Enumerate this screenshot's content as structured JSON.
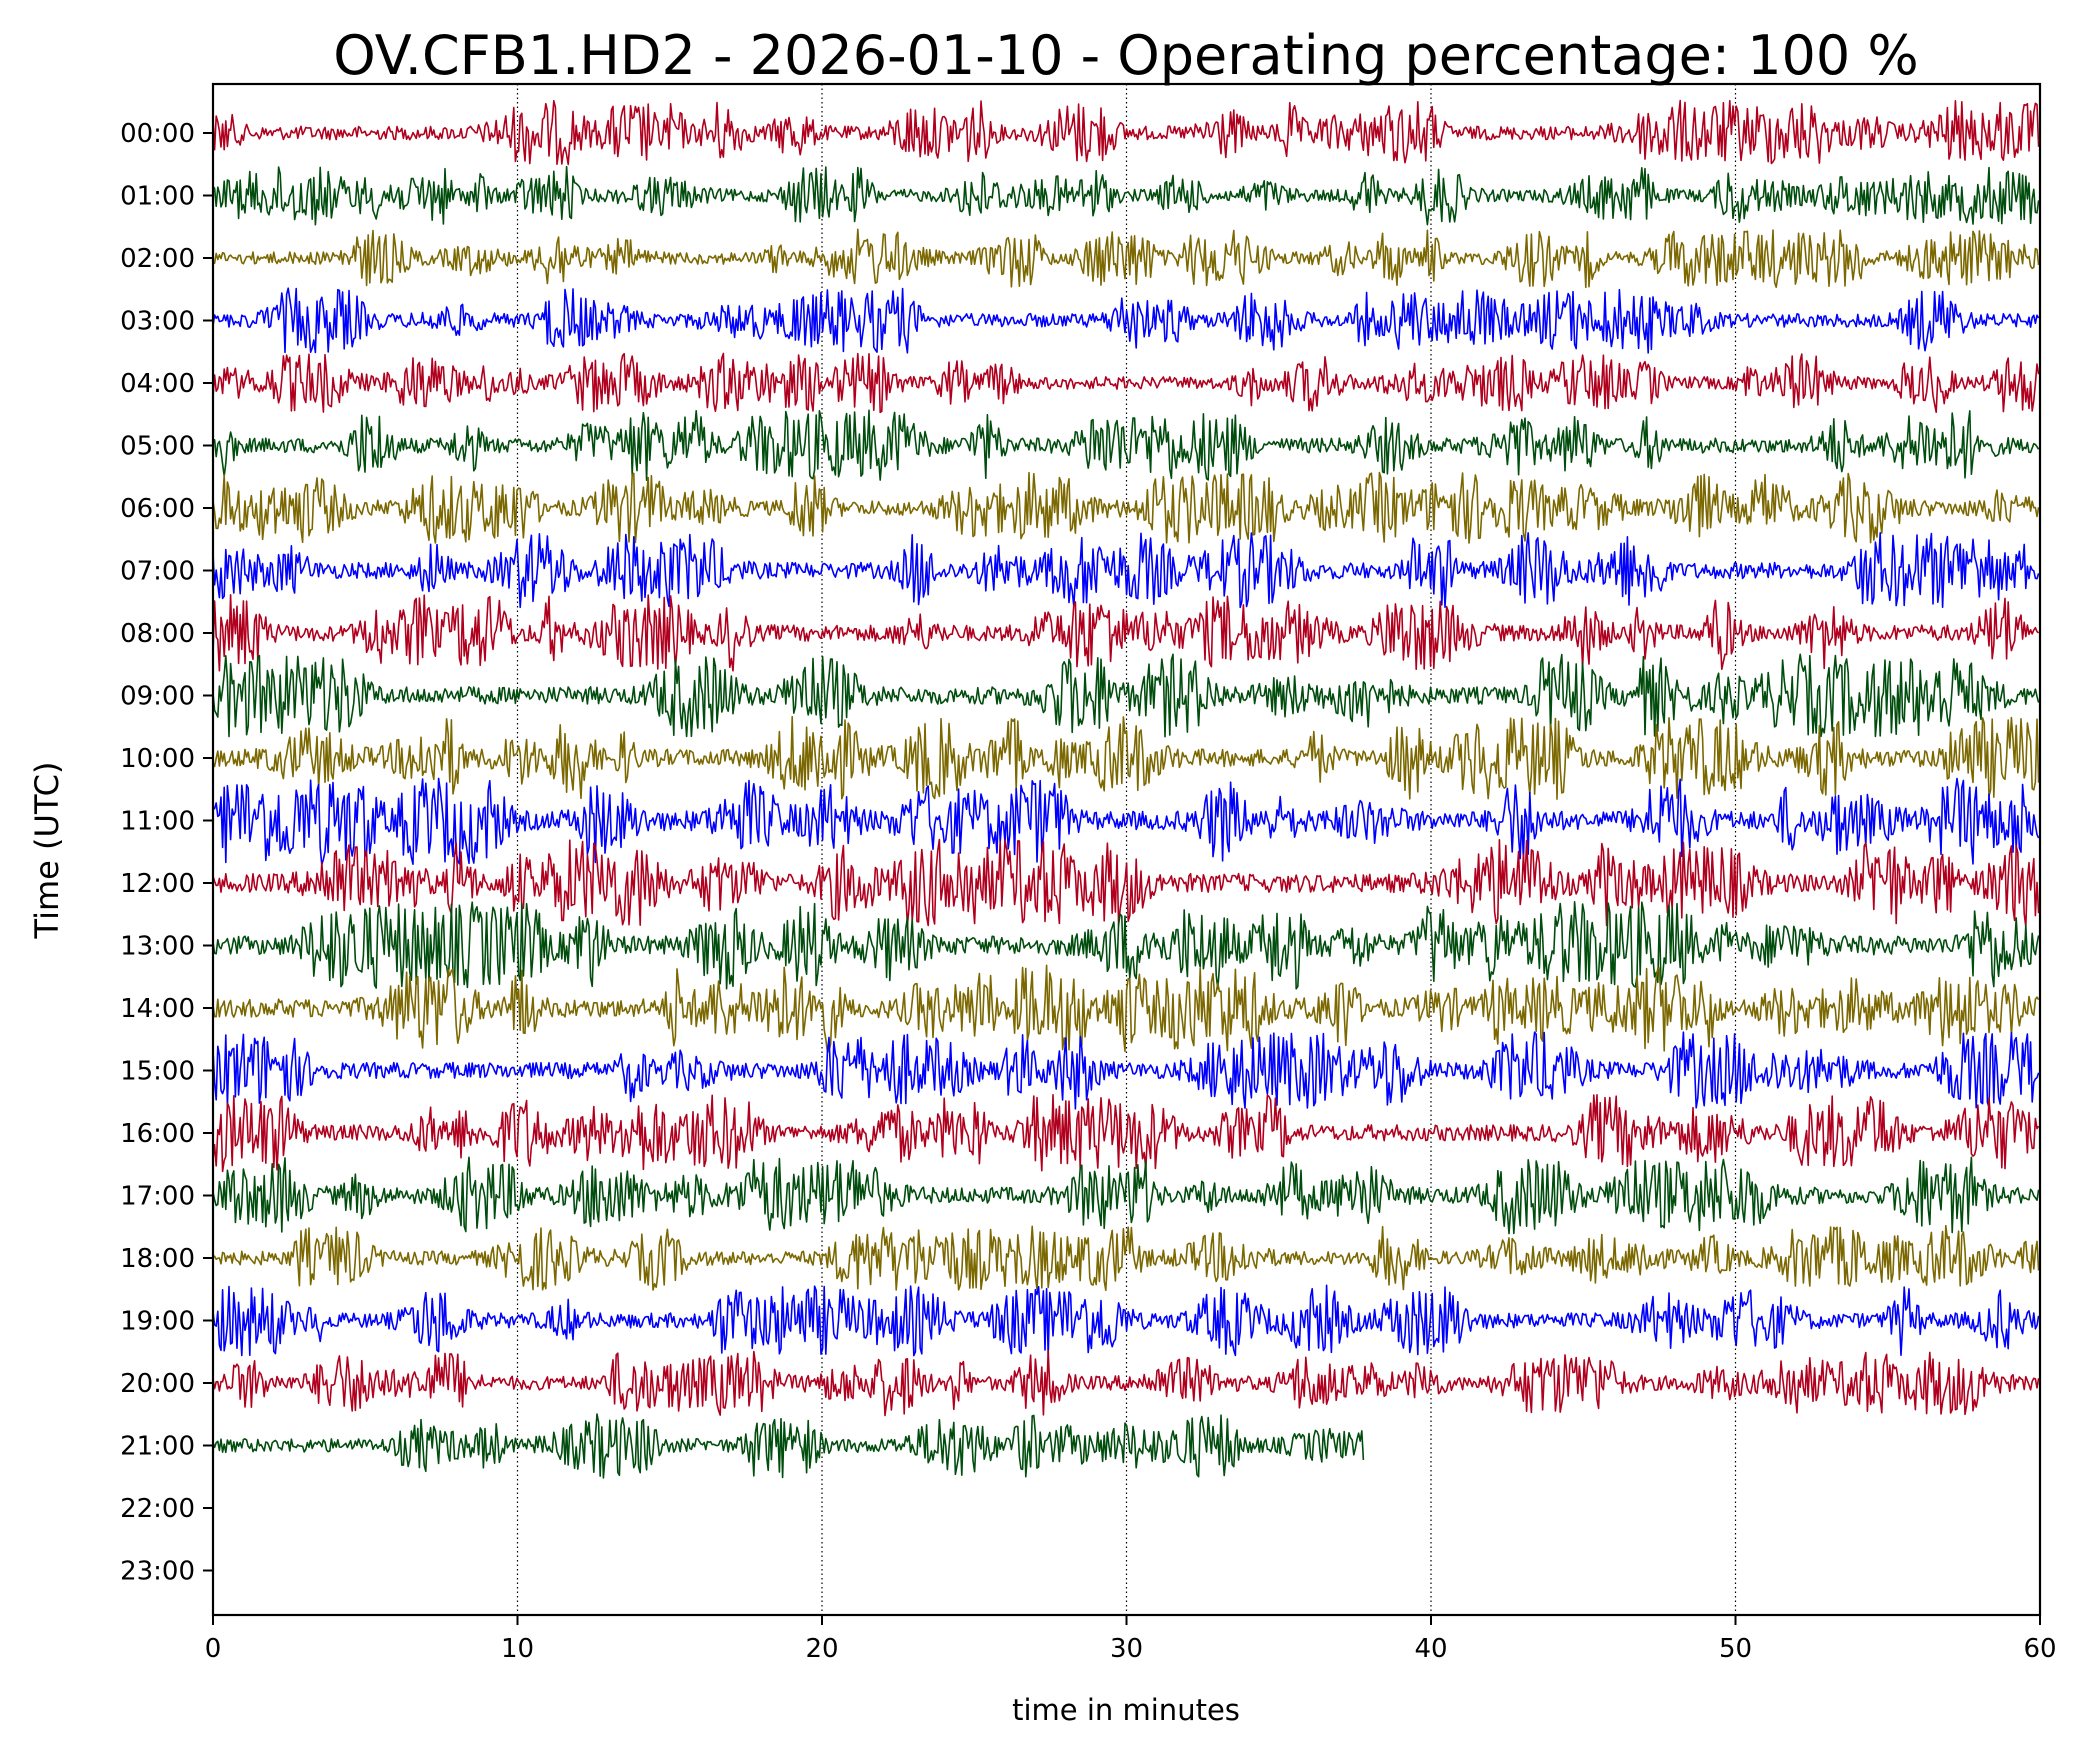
{
  "chart_data": {
    "type": "line",
    "title": "OV.CFB1.HD2 - 2026-01-10 - Operating percentage: 100 %",
    "xlabel": "time in minutes",
    "ylabel": "Time (UTC)",
    "xlim": [
      0,
      60
    ],
    "x_ticks": [
      "0",
      "10",
      "20",
      "30",
      "40",
      "50",
      "60"
    ],
    "x_tick_values": [
      0,
      10,
      20,
      30,
      40,
      50,
      60
    ],
    "grid": "vertical dotted at x ticks",
    "legend": "none",
    "row_colors": [
      "#b0001e",
      "#004d0d",
      "#7c6800",
      "#0000ff"
    ],
    "series": [
      {
        "name": "00:00",
        "color": "#b0001e",
        "end_minute": 60,
        "amplitude": 0.55
      },
      {
        "name": "01:00",
        "color": "#004d0d",
        "end_minute": 60,
        "amplitude": 0.5
      },
      {
        "name": "02:00",
        "color": "#7c6800",
        "end_minute": 60,
        "amplitude": 0.5
      },
      {
        "name": "03:00",
        "color": "#0000ff",
        "end_minute": 60,
        "amplitude": 0.55
      },
      {
        "name": "04:00",
        "color": "#b0001e",
        "end_minute": 60,
        "amplitude": 0.5
      },
      {
        "name": "05:00",
        "color": "#004d0d",
        "end_minute": 60,
        "amplitude": 0.6
      },
      {
        "name": "06:00",
        "color": "#7c6800",
        "end_minute": 60,
        "amplitude": 0.6
      },
      {
        "name": "07:00",
        "color": "#0000ff",
        "end_minute": 60,
        "amplitude": 0.65
      },
      {
        "name": "08:00",
        "color": "#b0001e",
        "end_minute": 60,
        "amplitude": 0.65
      },
      {
        "name": "09:00",
        "color": "#004d0d",
        "end_minute": 60,
        "amplitude": 0.7
      },
      {
        "name": "10:00",
        "color": "#7c6800",
        "end_minute": 60,
        "amplitude": 0.7
      },
      {
        "name": "11:00",
        "color": "#0000ff",
        "end_minute": 60,
        "amplitude": 0.75
      },
      {
        "name": "12:00",
        "color": "#b0001e",
        "end_minute": 60,
        "amplitude": 0.75
      },
      {
        "name": "13:00",
        "color": "#004d0d",
        "end_minute": 60,
        "amplitude": 0.75
      },
      {
        "name": "14:00",
        "color": "#7c6800",
        "end_minute": 60,
        "amplitude": 0.75
      },
      {
        "name": "15:00",
        "color": "#0000ff",
        "end_minute": 60,
        "amplitude": 0.65
      },
      {
        "name": "16:00",
        "color": "#b0001e",
        "end_minute": 60,
        "amplitude": 0.65
      },
      {
        "name": "17:00",
        "color": "#004d0d",
        "end_minute": 60,
        "amplitude": 0.65
      },
      {
        "name": "18:00",
        "color": "#7c6800",
        "end_minute": 60,
        "amplitude": 0.55
      },
      {
        "name": "19:00",
        "color": "#0000ff",
        "end_minute": 60,
        "amplitude": 0.6
      },
      {
        "name": "20:00",
        "color": "#b0001e",
        "end_minute": 60,
        "amplitude": 0.55
      },
      {
        "name": "21:00",
        "color": "#004d0d",
        "end_minute": 37.8,
        "amplitude": 0.55
      },
      {
        "name": "22:00",
        "color": "#7c6800",
        "end_minute": 0,
        "amplitude": 0
      },
      {
        "name": "23:00",
        "color": "#0000ff",
        "end_minute": 0,
        "amplitude": 0
      }
    ]
  }
}
